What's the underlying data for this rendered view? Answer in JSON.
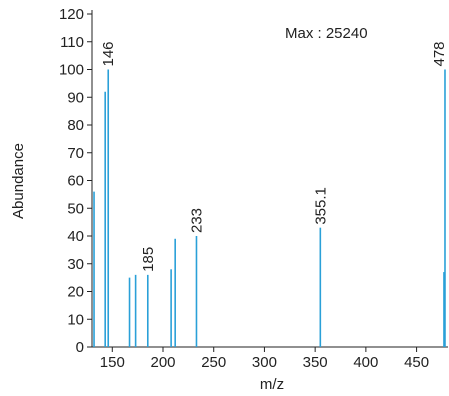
{
  "chart_data": {
    "type": "bar",
    "xlabel": "m/z",
    "ylabel": "Abundance",
    "xlim": [
      130,
      479
    ],
    "ylim": [
      0,
      120
    ],
    "x_ticks": [
      150,
      200,
      250,
      300,
      350,
      400,
      450
    ],
    "y_ticks": [
      0,
      10,
      20,
      30,
      40,
      50,
      60,
      70,
      80,
      90,
      100,
      110,
      120
    ],
    "annotation": "Max : 25240",
    "bar_color": "#2aa0d8",
    "peaks": [
      {
        "x": 132,
        "y": 56
      },
      {
        "x": 143,
        "y": 92
      },
      {
        "x": 146,
        "y": 100,
        "label": "146"
      },
      {
        "x": 167,
        "y": 25
      },
      {
        "x": 173,
        "y": 26
      },
      {
        "x": 185,
        "y": 26,
        "label": "185"
      },
      {
        "x": 208,
        "y": 28
      },
      {
        "x": 212,
        "y": 39
      },
      {
        "x": 233,
        "y": 40,
        "label": "233"
      },
      {
        "x": 355.1,
        "y": 43,
        "label": "355.1"
      },
      {
        "x": 477,
        "y": 27
      },
      {
        "x": 478,
        "y": 100,
        "label": "478"
      }
    ]
  }
}
